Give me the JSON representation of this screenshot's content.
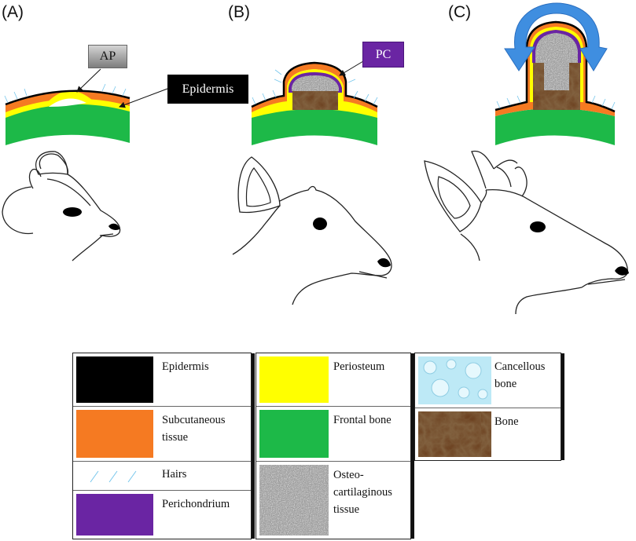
{
  "panels": [
    {
      "id": "a",
      "label": "(A)"
    },
    {
      "id": "b",
      "label": "(B)"
    },
    {
      "id": "c",
      "label": "(C)"
    }
  ],
  "callouts": {
    "ap": "AP",
    "epidermis": "Epidermis",
    "pc": "PC"
  },
  "colors": {
    "epidermis": "#000000",
    "subcutaneous": "#f57a22",
    "perichondrium": "#6a25a3",
    "periosteum": "#ffff00",
    "frontal_bone": "#1db948",
    "bone": "#4a2a16",
    "cancellous": "#bde9f6",
    "hairs": "#76c6ec",
    "arrow": "#3f8ee0"
  },
  "legend": {
    "columns": [
      {
        "items": [
          {
            "key": "epidermis",
            "text": "Epidermis",
            "swatch_icon": "black-swatch-icon"
          },
          {
            "key": "subcutaneous",
            "text": "Subcutaneous tissue",
            "swatch_icon": "orange-swatch-icon"
          },
          {
            "key": "hairs",
            "text": "Hairs",
            "swatch_icon": "hairs-swatch-icon"
          },
          {
            "key": "perichondrium",
            "text": "Perichondrium",
            "swatch_icon": "purple-swatch-icon"
          }
        ]
      },
      {
        "items": [
          {
            "key": "periosteum",
            "text": "Periosteum",
            "swatch_icon": "yellow-swatch-icon"
          },
          {
            "key": "frontal_bone",
            "text": "Frontal bone",
            "swatch_icon": "green-swatch-icon"
          },
          {
            "key": "osteo",
            "text": "Osteo-cartilaginous tissue",
            "swatch_icon": "speckled-swatch-icon"
          }
        ]
      },
      {
        "items": [
          {
            "key": "cancellous",
            "text": "Cancellous bone",
            "swatch_icon": "bubbles-swatch-icon"
          },
          {
            "key": "bone",
            "text": "Bone",
            "swatch_icon": "brown-swatch-icon"
          }
        ]
      }
    ]
  }
}
